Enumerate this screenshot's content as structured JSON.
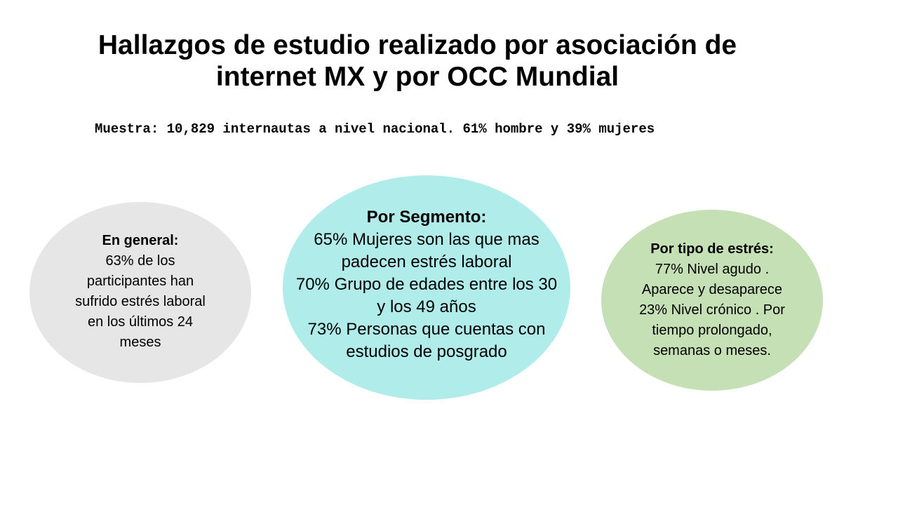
{
  "title": {
    "line1": "Hallazgos de estudio realizado por asociación de",
    "line2": "internet MX y por OCC Mundial"
  },
  "sample_note": "Muestra: 10,829 internautas a nivel nacional. 61% hombre y 39% mujeres",
  "general": {
    "heading": "En general:",
    "lines": [
      "63% de los",
      "participantes han",
      "sufrido estrés laboral",
      "en los últimos 24",
      "meses"
    ]
  },
  "segment": {
    "heading": "Por Segmento:",
    "lines": [
      "65%  Mujeres son las que mas",
      "padecen estrés laboral",
      "70% Grupo de edades entre los 30",
      "y los 49 años",
      "73%  Personas que cuentas con",
      "estudios de posgrado"
    ]
  },
  "stress_type": {
    "heading": "Por tipo de estrés:",
    "lines": [
      "77% Nivel agudo .",
      "Aparece y desaparece",
      "23% Nivel crónico .  Por",
      "tiempo prolongado,",
      "semanas  o meses."
    ]
  },
  "colors": {
    "general_circle": "#e6e6e6",
    "segment_circle": "#afecea",
    "stress_type_circle": "#c5e0b4"
  }
}
